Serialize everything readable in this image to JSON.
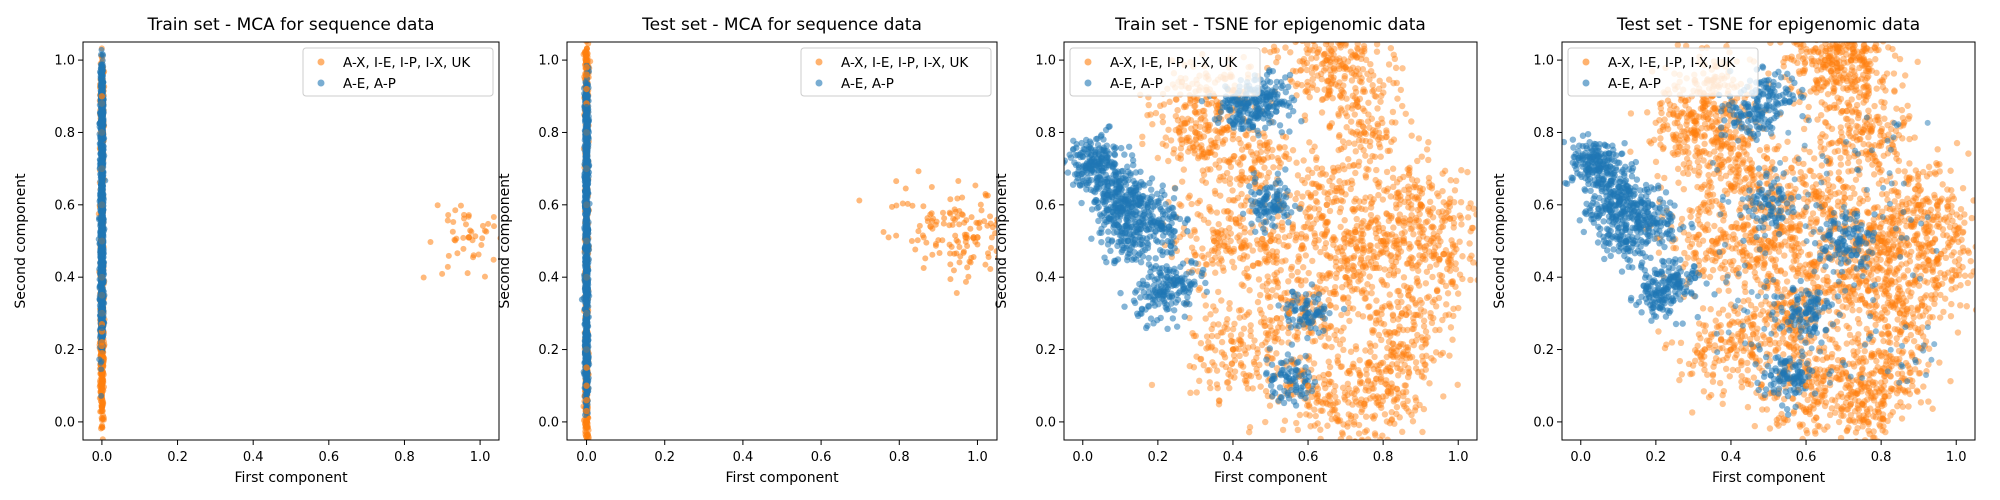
{
  "colors": {
    "positive_series": "#ff7f0e",
    "negative_series": "#1f77b4",
    "axes": "#000000",
    "legend_border": "#cccccc"
  },
  "chart_data": [
    {
      "type": "scatter",
      "title": "Train set - MCA for sequence data",
      "xlabel": "First component",
      "ylabel": "Second component",
      "xlim": [
        -0.05,
        1.05
      ],
      "ylim": [
        -0.05,
        1.05
      ],
      "xticks": [
        "0.0",
        "0.2",
        "0.4",
        "0.6",
        "0.8",
        "1.0"
      ],
      "yticks": [
        "0.0",
        "0.2",
        "0.4",
        "0.6",
        "0.8",
        "1.0"
      ],
      "grid": false,
      "legend_position": "top-right",
      "series": [
        {
          "name": "A-X, I-E, I-P, I-X, UK",
          "color": "#ff7f0e",
          "points": [
            [
              0.0,
              0.04
            ],
            [
              0.0,
              0.12
            ],
            [
              0.0,
              0.13
            ],
            [
              0.0,
              0.19
            ],
            [
              0.0,
              0.21
            ],
            [
              0.0,
              0.22
            ],
            [
              0.0,
              0.25
            ],
            [
              0.0,
              0.27
            ],
            [
              0.0,
              0.3
            ],
            [
              0.0,
              0.35
            ],
            [
              0.0,
              0.4
            ],
            [
              0.0,
              0.5
            ],
            [
              0.0,
              0.6
            ],
            [
              0.0,
              0.7
            ],
            [
              0.0,
              0.8
            ],
            [
              0.0,
              0.88
            ],
            [
              0.0,
              0.9
            ],
            [
              0.97,
              0.51
            ]
          ]
        },
        {
          "name": "A-E, A-P",
          "color": "#1f77b4",
          "points": [
            [
              0.0,
              0.26
            ],
            [
              0.0,
              0.3
            ],
            [
              0.0,
              0.35
            ],
            [
              0.0,
              0.4
            ],
            [
              0.0,
              0.45
            ],
            [
              0.0,
              0.5
            ],
            [
              0.0,
              0.55
            ],
            [
              0.0,
              0.6
            ],
            [
              0.0,
              0.65
            ],
            [
              0.0,
              0.7
            ],
            [
              0.0,
              0.75
            ],
            [
              0.0,
              0.8
            ],
            [
              0.0,
              0.85
            ],
            [
              0.0,
              0.88
            ],
            [
              0.0,
              0.94
            ]
          ]
        }
      ]
    },
    {
      "type": "scatter",
      "title": "Test set - MCA for sequence data",
      "xlabel": "First component",
      "ylabel": "Second component",
      "xlim": [
        -0.05,
        1.05
      ],
      "ylim": [
        -0.05,
        1.05
      ],
      "xticks": [
        "0.0",
        "0.2",
        "0.4",
        "0.6",
        "0.8",
        "1.0"
      ],
      "yticks": [
        "0.0",
        "0.2",
        "0.4",
        "0.6",
        "0.8",
        "1.0"
      ],
      "grid": false,
      "legend_position": "top-right",
      "series": [
        {
          "name": "A-X, I-E, I-P, I-X, UK",
          "color": "#ff7f0e",
          "points": [
            [
              0.0,
              0.0
            ],
            [
              0.0,
              0.03
            ],
            [
              0.0,
              0.06
            ],
            [
              0.0,
              0.1
            ],
            [
              0.0,
              0.15
            ],
            [
              0.0,
              0.2
            ],
            [
              0.0,
              0.3
            ],
            [
              0.0,
              0.4
            ],
            [
              0.0,
              0.5
            ],
            [
              0.0,
              0.6
            ],
            [
              0.0,
              0.7
            ],
            [
              0.0,
              0.8
            ],
            [
              0.0,
              0.88
            ],
            [
              0.0,
              0.92
            ],
            [
              0.0,
              0.96
            ],
            [
              0.0,
              0.98
            ],
            [
              0.0,
              1.0
            ],
            [
              0.88,
              0.54
            ],
            [
              0.97,
              0.51
            ],
            [
              0.99,
              0.51
            ],
            [
              1.0,
              0.51
            ]
          ]
        },
        {
          "name": "A-E, A-P",
          "color": "#1f77b4",
          "points": [
            [
              0.0,
              0.12
            ],
            [
              0.0,
              0.2
            ],
            [
              0.0,
              0.3
            ],
            [
              0.0,
              0.4
            ],
            [
              0.0,
              0.5
            ],
            [
              0.0,
              0.6
            ],
            [
              0.0,
              0.7
            ],
            [
              0.0,
              0.8
            ],
            [
              0.0,
              0.87
            ]
          ]
        }
      ]
    },
    {
      "type": "scatter",
      "title": "Train set - TSNE for epigenomic data",
      "xlabel": "First component",
      "ylabel": "Second component",
      "xlim": [
        -0.05,
        1.05
      ],
      "ylim": [
        -0.05,
        1.05
      ],
      "xticks": [
        "0.0",
        "0.2",
        "0.4",
        "0.6",
        "0.8",
        "1.0"
      ],
      "yticks": [
        "0.0",
        "0.2",
        "0.4",
        "0.6",
        "0.8",
        "1.0"
      ],
      "grid": false,
      "legend_position": "top-left",
      "series": [
        {
          "name": "A-X, I-E, I-P, I-X, UK",
          "color": "#ff7f0e",
          "points": [
            [
              0.3,
              0.8
            ],
            [
              0.35,
              0.9
            ],
            [
              0.45,
              0.7
            ],
            [
              0.5,
              0.5
            ],
            [
              0.55,
              0.3
            ],
            [
              0.6,
              0.1
            ],
            [
              0.65,
              0.6
            ],
            [
              0.7,
              0.4
            ],
            [
              0.75,
              0.8
            ],
            [
              0.8,
              0.5
            ],
            [
              0.85,
              0.3
            ],
            [
              0.9,
              0.6
            ],
            [
              0.95,
              0.45
            ],
            [
              0.4,
              0.2
            ],
            [
              0.35,
              0.5
            ],
            [
              0.75,
              0.05
            ],
            [
              0.82,
              0.14
            ],
            [
              0.65,
              1.0
            ],
            [
              0.7,
              0.98
            ]
          ]
        },
        {
          "name": "A-E, A-P",
          "color": "#1f77b4",
          "points": [
            [
              0.02,
              0.7
            ],
            [
              0.05,
              0.72
            ],
            [
              0.1,
              0.65
            ],
            [
              0.15,
              0.6
            ],
            [
              0.2,
              0.55
            ],
            [
              0.12,
              0.5
            ],
            [
              0.08,
              0.58
            ],
            [
              0.2,
              0.35
            ],
            [
              0.25,
              0.4
            ],
            [
              0.45,
              0.85
            ],
            [
              0.5,
              0.9
            ],
            [
              0.42,
              0.88
            ],
            [
              0.5,
              0.6
            ],
            [
              0.6,
              0.3
            ],
            [
              0.55,
              0.12
            ]
          ]
        }
      ]
    },
    {
      "type": "scatter",
      "title": "Test set - TSNE for epigenomic data",
      "xlabel": "First component",
      "ylabel": "Second component",
      "xlim": [
        -0.05,
        1.05
      ],
      "ylim": [
        -0.05,
        1.05
      ],
      "xticks": [
        "0.0",
        "0.2",
        "0.4",
        "0.6",
        "0.8",
        "1.0"
      ],
      "yticks": [
        "0.0",
        "0.2",
        "0.4",
        "0.6",
        "0.8",
        "1.0"
      ],
      "grid": false,
      "legend_position": "top-left",
      "series": [
        {
          "name": "A-X, I-E, I-P, I-X, UK",
          "color": "#ff7f0e",
          "points": [
            [
              0.3,
              0.8
            ],
            [
              0.35,
              0.9
            ],
            [
              0.45,
              0.7
            ],
            [
              0.5,
              0.5
            ],
            [
              0.55,
              0.3
            ],
            [
              0.6,
              0.1
            ],
            [
              0.65,
              0.6
            ],
            [
              0.7,
              0.4
            ],
            [
              0.75,
              0.8
            ],
            [
              0.8,
              0.5
            ],
            [
              0.85,
              0.3
            ],
            [
              0.9,
              0.6
            ],
            [
              0.95,
              0.45
            ],
            [
              0.4,
              0.2
            ],
            [
              0.35,
              0.5
            ],
            [
              0.75,
              0.05
            ],
            [
              0.8,
              0.14
            ],
            [
              0.65,
              1.0
            ],
            [
              0.72,
              1.0
            ]
          ]
        },
        {
          "name": "A-E, A-P",
          "color": "#1f77b4",
          "points": [
            [
              0.02,
              0.7
            ],
            [
              0.05,
              0.72
            ],
            [
              0.1,
              0.65
            ],
            [
              0.15,
              0.6
            ],
            [
              0.2,
              0.55
            ],
            [
              0.12,
              0.5
            ],
            [
              0.08,
              0.58
            ],
            [
              0.2,
              0.35
            ],
            [
              0.25,
              0.4
            ],
            [
              0.45,
              0.85
            ],
            [
              0.5,
              0.9
            ],
            [
              0.5,
              0.6
            ],
            [
              0.6,
              0.3
            ],
            [
              0.55,
              0.12
            ],
            [
              0.7,
              0.5
            ]
          ]
        }
      ]
    }
  ]
}
